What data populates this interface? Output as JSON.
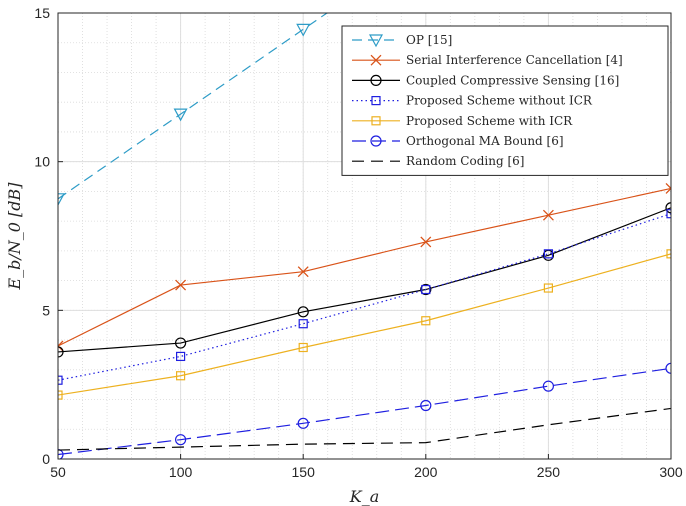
{
  "chart_data": {
    "type": "line",
    "title": "",
    "xlabel": "K_a",
    "ylabel": "E_b/N_0 [dB]",
    "x": [
      50,
      100,
      150,
      200,
      250,
      300
    ],
    "xlim": [
      50,
      300
    ],
    "ylim": [
      0,
      15
    ],
    "x_ticks": [
      "50",
      "100",
      "150",
      "200",
      "250",
      "300"
    ],
    "y_ticks": [
      "0",
      "5",
      "10",
      "15"
    ],
    "grid": "on (major and minor, dotted minor)",
    "legend_position": "top-right",
    "series": [
      {
        "name": "OP [15]",
        "color": "#2e9cc7",
        "dash": "10,6",
        "marker": "triangle-down",
        "points": [
          [
            50,
            8.75
          ],
          [
            100,
            11.6
          ],
          [
            150,
            14.45
          ],
          [
            165,
            15.3
          ]
        ],
        "marker_count": 3
      },
      {
        "name": "Serial Interference Cancellation [4]",
        "color": "#d95319",
        "dash": "",
        "marker": "x",
        "points": [
          [
            50,
            3.8
          ],
          [
            100,
            5.85
          ],
          [
            150,
            6.3
          ],
          [
            200,
            7.3
          ],
          [
            250,
            8.2
          ],
          [
            300,
            9.1
          ]
        ]
      },
      {
        "name": "Coupled Compressive Sensing [16]",
        "color": "#000000",
        "dash": "",
        "marker": "circle",
        "points": [
          [
            50,
            3.6
          ],
          [
            100,
            3.9
          ],
          [
            150,
            4.95
          ],
          [
            200,
            5.7
          ],
          [
            250,
            6.85
          ],
          [
            300,
            8.45
          ]
        ]
      },
      {
        "name": "Proposed Scheme without ICR",
        "color": "#1f1fe0",
        "dash": "1.5,3",
        "marker": "square",
        "points": [
          [
            50,
            2.65
          ],
          [
            100,
            3.45
          ],
          [
            150,
            4.55
          ],
          [
            200,
            5.7
          ],
          [
            250,
            6.9
          ],
          [
            300,
            8.25
          ]
        ]
      },
      {
        "name": "Proposed Scheme with ICR",
        "color": "#edb120",
        "dash": "",
        "marker": "square",
        "points": [
          [
            50,
            2.15
          ],
          [
            100,
            2.8
          ],
          [
            150,
            3.75
          ],
          [
            200,
            4.65
          ],
          [
            250,
            5.75
          ],
          [
            300,
            6.9
          ]
        ]
      },
      {
        "name": "Orthogonal MA Bound [6]",
        "color": "#1f1fe0",
        "dash": "14,6",
        "marker": "circle",
        "points": [
          [
            50,
            0.15
          ],
          [
            100,
            0.65
          ],
          [
            150,
            1.2
          ],
          [
            200,
            1.8
          ],
          [
            250,
            2.45
          ],
          [
            300,
            3.05
          ]
        ]
      },
      {
        "name": "Random Coding [6]",
        "color": "#000000",
        "dash": "12,7",
        "marker": "none",
        "points": [
          [
            50,
            0.3
          ],
          [
            100,
            0.4
          ],
          [
            150,
            0.5
          ],
          [
            200,
            0.55
          ],
          [
            250,
            1.15
          ],
          [
            300,
            1.7
          ]
        ]
      }
    ]
  }
}
